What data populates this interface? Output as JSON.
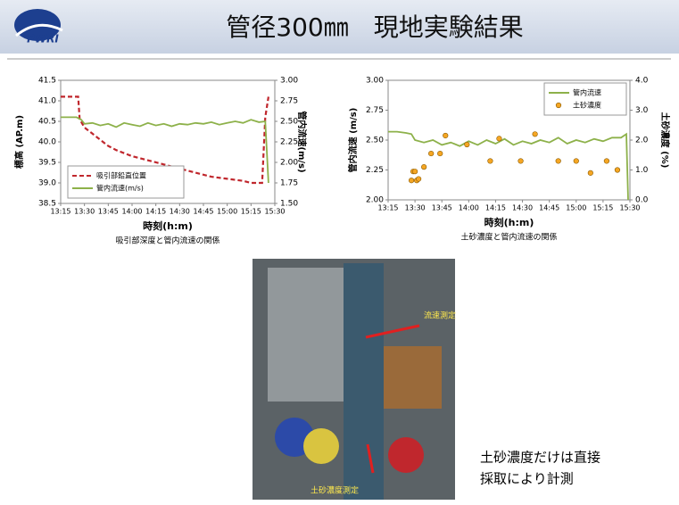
{
  "header": {
    "title": "管径300㎜　現地実験結果",
    "logo_text": "PWRI"
  },
  "chart_data": [
    {
      "type": "line",
      "caption": "吸引部深度と管内流速の関係",
      "x_label": "時刻(h:m)",
      "y_label": "標高 (AP.m)",
      "y2_label": "管内流速(m/s)",
      "legend": "lower left",
      "xlim": [
        795,
        930
      ],
      "xticks": [
        {
          "value": 795,
          "label": "13:15"
        },
        {
          "value": 810,
          "label": "13:30"
        },
        {
          "value": 825,
          "label": "13:45"
        },
        {
          "value": 840,
          "label": "14:00"
        },
        {
          "value": 855,
          "label": "14:15"
        },
        {
          "value": 870,
          "label": "14:30"
        },
        {
          "value": 885,
          "label": "14:45"
        },
        {
          "value": 900,
          "label": "15:00"
        },
        {
          "value": 915,
          "label": "15:15"
        },
        {
          "value": 930,
          "label": "15:30"
        }
      ],
      "ylim": [
        38.5,
        41.5
      ],
      "yticks": [
        38.5,
        {
          "value": 39,
          "label": "39.0"
        },
        39.5,
        {
          "value": 40,
          "label": "40.0"
        },
        40.5,
        {
          "value": 41,
          "label": "41.0"
        },
        41.5
      ],
      "y2lim": [
        1.5,
        3.0
      ],
      "y2ticks": [
        {
          "value": 1.5,
          "label": "1.50"
        },
        {
          "value": 1.75,
          "label": "1.75"
        },
        {
          "value": 2.0,
          "label": "2.00"
        },
        {
          "value": 2.25,
          "label": "2.25"
        },
        {
          "value": 2.5,
          "label": "2.50"
        },
        {
          "value": 2.75,
          "label": "2.75"
        },
        {
          "value": 3.0,
          "label": "3.00"
        }
      ],
      "series": [
        {
          "name": "吸引部鉛直位置",
          "color": "#c0272d",
          "line_style": "dashed",
          "x": [
            795,
            806,
            807,
            810,
            815,
            820,
            825,
            830,
            840,
            850,
            860,
            870,
            880,
            890,
            900,
            910,
            915,
            920,
            922,
            924,
            926
          ],
          "values": [
            41.1,
            41.1,
            40.55,
            40.35,
            40.2,
            40.05,
            39.9,
            39.8,
            39.65,
            39.55,
            39.45,
            39.35,
            39.25,
            39.15,
            39.1,
            39.05,
            39.0,
            39.0,
            39.0,
            40.6,
            41.1
          ]
        },
        {
          "name": "管内流速(m/s)",
          "color": "#8db14a",
          "axis": "y2",
          "line_style": "solid",
          "x": [
            795,
            800,
            805,
            808,
            810,
            815,
            820,
            825,
            830,
            835,
            840,
            845,
            850,
            855,
            860,
            865,
            870,
            875,
            880,
            885,
            890,
            895,
            900,
            905,
            910,
            915,
            920,
            924,
            926
          ],
          "values": [
            2.55,
            2.55,
            2.55,
            2.52,
            2.47,
            2.48,
            2.45,
            2.47,
            2.43,
            2.48,
            2.46,
            2.44,
            2.48,
            2.45,
            2.47,
            2.44,
            2.47,
            2.46,
            2.48,
            2.47,
            2.49,
            2.46,
            2.48,
            2.5,
            2.48,
            2.52,
            2.49,
            2.5,
            1.75
          ]
        }
      ]
    },
    {
      "type": "line",
      "caption": "土砂濃度と管内流速の関係",
      "x_label": "時刻(h:m)",
      "y_label": "管内流速 (m/s)",
      "y2_label": "土砂濃度 (%)",
      "legend": "upper right",
      "xlim": [
        795,
        930
      ],
      "xticks": [
        {
          "value": 795,
          "label": "13:15"
        },
        {
          "value": 810,
          "label": "13:30"
        },
        {
          "value": 825,
          "label": "13:45"
        },
        {
          "value": 840,
          "label": "14:00"
        },
        {
          "value": 855,
          "label": "14:15"
        },
        {
          "value": 870,
          "label": "14:30"
        },
        {
          "value": 885,
          "label": "14:45"
        },
        {
          "value": 900,
          "label": "15:00"
        },
        {
          "value": 915,
          "label": "15:15"
        },
        {
          "value": 930,
          "label": "15:30"
        }
      ],
      "ylim": [
        2.0,
        3.0
      ],
      "yticks": [
        {
          "value": 2.0,
          "label": "2.00"
        },
        {
          "value": 2.25,
          "label": "2.25"
        },
        {
          "value": 2.5,
          "label": "2.50"
        },
        {
          "value": 2.75,
          "label": "2.75"
        },
        {
          "value": 3.0,
          "label": "3.00"
        }
      ],
      "y2lim": [
        0,
        4
      ],
      "y2ticks": [
        {
          "value": 0,
          "label": "0.0"
        },
        {
          "value": 1,
          "label": "1.0"
        },
        {
          "value": 2,
          "label": "2.0"
        },
        {
          "value": 3,
          "label": "3.0"
        },
        {
          "value": 4,
          "label": "4.0"
        }
      ],
      "series": [
        {
          "name": "管内流速",
          "color": "#8db14a",
          "line_style": "solid",
          "x": [
            795,
            800,
            805,
            808,
            810,
            815,
            820,
            825,
            830,
            835,
            840,
            845,
            850,
            855,
            860,
            865,
            870,
            875,
            880,
            885,
            890,
            895,
            900,
            905,
            910,
            915,
            920,
            925,
            928,
            929
          ],
          "values": [
            2.57,
            2.57,
            2.56,
            2.55,
            2.5,
            2.48,
            2.5,
            2.46,
            2.48,
            2.45,
            2.49,
            2.46,
            2.5,
            2.47,
            2.51,
            2.46,
            2.49,
            2.47,
            2.5,
            2.48,
            2.52,
            2.47,
            2.5,
            2.48,
            2.51,
            2.49,
            2.52,
            2.52,
            2.55,
            2.0
          ]
        },
        {
          "name": "土砂濃度",
          "color": "#f5a623",
          "axis": "y2",
          "type": "scatter",
          "x": [
            808,
            809,
            810,
            811,
            812,
            815,
            819,
            824,
            827,
            839,
            852,
            857,
            869,
            877,
            890,
            900,
            908,
            917,
            923
          ],
          "values": [
            0.65,
            0.95,
            0.95,
            0.65,
            0.7,
            1.1,
            1.55,
            1.55,
            2.15,
            1.85,
            1.3,
            2.05,
            1.3,
            2.2,
            1.3,
            1.3,
            0.9,
            1.3,
            1.0
          ]
        }
      ]
    }
  ],
  "photo": {
    "label_top": "流速測定",
    "label_bottom": "土砂濃度測定"
  },
  "note": {
    "lines": [
      "土砂濃度だけは直接",
      "採取により計測"
    ]
  }
}
